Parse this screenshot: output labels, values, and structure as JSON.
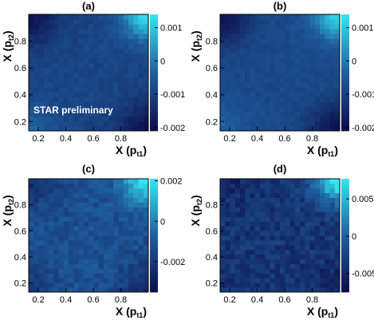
{
  "chart_data": [
    {
      "type": "heatmap",
      "title": "(a)",
      "xlabel": "X (p",
      "xlabel_sub": "t1",
      "xlabel_close": ")",
      "ylabel": "X (p",
      "ylabel_sub": "t2",
      "ylabel_close": ")",
      "xlim": [
        0.13,
        1.0
      ],
      "ylim": [
        0.13,
        1.0
      ],
      "x_ticks": [
        0.2,
        0.4,
        0.6,
        0.8
      ],
      "y_ticks": [
        0.2,
        0.4,
        0.6,
        0.8
      ],
      "zlim": [
        -0.0021,
        0.0014
      ],
      "z_ticks": [
        0.001,
        0,
        -0.001,
        -0.002
      ],
      "z_tick_labels": [
        "0.001",
        "0",
        "-0.001",
        "-0.002"
      ],
      "annotation": "STAR preliminary",
      "colors": {
        "low": "#0d0d4a",
        "mid": "#1f5e9e",
        "high": "#33e6f2"
      },
      "z_model": {
        "base": -0.0009,
        "high_corner": 0.0022,
        "low_top_left": -0.0011,
        "low_bottom_right": -0.0011,
        "low_bottom_left": 0.0006,
        "noise": 0.00015
      }
    },
    {
      "type": "heatmap",
      "title": "(b)",
      "xlabel": "X (p",
      "xlabel_sub": "t1",
      "xlabel_close": ")",
      "ylabel": "X (p",
      "ylabel_sub": "t2",
      "ylabel_close": ")",
      "xlim": [
        0.13,
        1.0
      ],
      "ylim": [
        0.13,
        1.0
      ],
      "x_ticks": [
        0.2,
        0.4,
        0.6,
        0.8
      ],
      "y_ticks": [
        0.2,
        0.4,
        0.6,
        0.8
      ],
      "zlim": [
        -0.0021,
        0.0014
      ],
      "z_ticks": [
        0.001,
        0,
        -0.001,
        -0.002
      ],
      "z_tick_labels": [
        "0.001",
        "0",
        "-0.001",
        "-0.002"
      ],
      "colors": {
        "low": "#0d0d4a",
        "mid": "#1f5e9e",
        "high": "#33e6f2"
      },
      "z_model": {
        "base": -0.0008,
        "high_corner": 0.002,
        "low_top_left": -0.0012,
        "low_bottom_right": -0.0012,
        "low_bottom_left": 0.0005,
        "noise": 0.00012
      }
    },
    {
      "type": "heatmap",
      "title": "(c)",
      "xlabel": "X (p",
      "xlabel_sub": "t1",
      "xlabel_close": ")",
      "ylabel": "X (p",
      "ylabel_sub": "t2",
      "ylabel_close": ")",
      "xlim": [
        0.13,
        1.0
      ],
      "ylim": [
        0.13,
        1.0
      ],
      "x_ticks": [
        0.2,
        0.4,
        0.6,
        0.8
      ],
      "y_ticks": [
        0.2,
        0.4,
        0.6,
        0.8
      ],
      "zlim": [
        -0.0035,
        0.0021
      ],
      "z_ticks": [
        0.002,
        0,
        -0.002
      ],
      "z_tick_labels": [
        "0.002",
        "0",
        "-0.002"
      ],
      "colors": {
        "low": "#0d0d4a",
        "mid": "#1f5e9e",
        "high": "#33e6f2"
      },
      "z_model": {
        "base": -0.0012,
        "high_corner": 0.0035,
        "low_top_left": -0.0012,
        "low_bottom_right": -0.0012,
        "low_bottom_left": -0.0008,
        "noise": 0.00045
      }
    },
    {
      "type": "heatmap",
      "title": "(d)",
      "xlabel": "X (p",
      "xlabel_sub": "t1",
      "xlabel_close": ")",
      "ylabel": "X (p",
      "ylabel_sub": "t2",
      "ylabel_close": ")",
      "xlim": [
        0.13,
        1.0
      ],
      "ylim": [
        0.13,
        1.0
      ],
      "x_ticks": [
        0.2,
        0.4,
        0.6,
        0.8
      ],
      "y_ticks": [
        0.2,
        0.4,
        0.6,
        0.8
      ],
      "zlim": [
        -0.0075,
        0.0077
      ],
      "z_ticks": [
        0.005,
        0,
        -0.005
      ],
      "z_tick_labels": [
        "0.005",
        "0",
        "-0.005"
      ],
      "colors": {
        "low": "#0d0d4a",
        "mid": "#1f5e9e",
        "high": "#33e6f2"
      },
      "z_model": {
        "base": -0.0038,
        "high_corner": 0.0125,
        "low_top_left": -0.0018,
        "low_bottom_right": -0.0018,
        "low_bottom_left": -0.0005,
        "noise": 0.0015
      }
    }
  ]
}
